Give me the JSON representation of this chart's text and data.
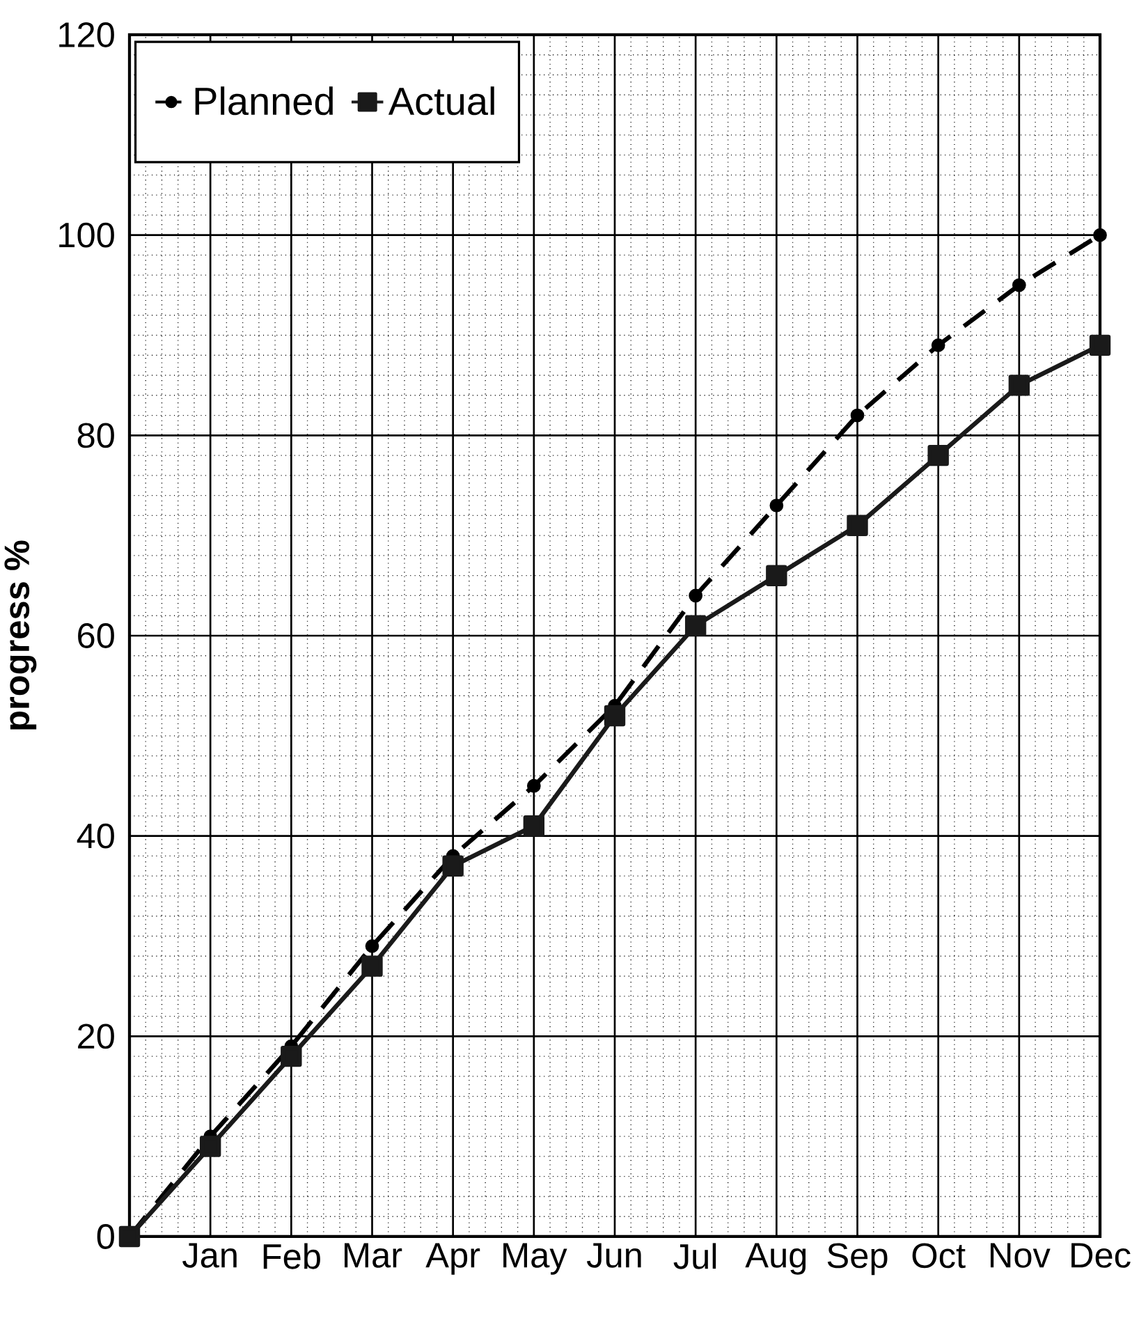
{
  "chart_data": {
    "type": "line",
    "ylabel": "progress %",
    "categories": [
      null,
      "Jan",
      "Feb",
      "Mar",
      "Apr",
      "May",
      "Jun",
      "Jul",
      "Aug",
      "Sep",
      "Oct",
      "Nov",
      "Dec"
    ],
    "series": [
      {
        "name": "Planned",
        "color": "#000000",
        "line_style": "dashed",
        "marker": "circle",
        "values": [
          0,
          10,
          19,
          29,
          38,
          45,
          53,
          64,
          73,
          82,
          89,
          95,
          100
        ]
      },
      {
        "name": "Actual",
        "color": "#1a1a1a",
        "line_style": "solid",
        "marker": "square",
        "values": [
          0,
          9,
          18,
          27,
          37,
          41,
          52,
          61,
          66,
          71,
          78,
          85,
          89
        ]
      }
    ],
    "ylim": [
      0,
      120
    ],
    "yticks": [
      0,
      20,
      40,
      60,
      80,
      100,
      120
    ],
    "grid": true,
    "legend": "top left"
  }
}
